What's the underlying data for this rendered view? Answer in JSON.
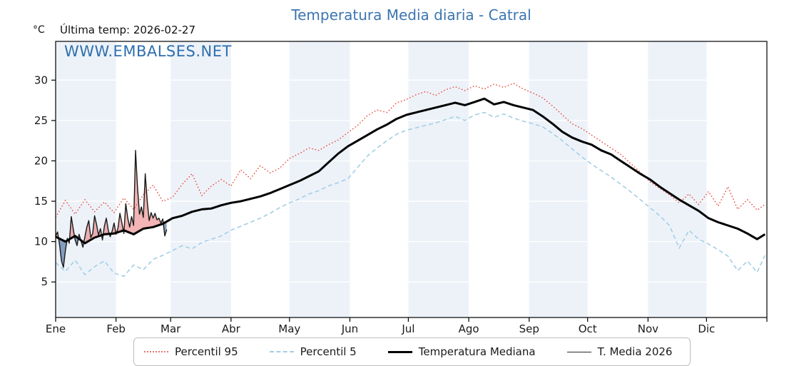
{
  "title": "Temperatura Media diaria - Catral",
  "header": {
    "unit_label": "°C",
    "last_temp_label": "Última temp: 2026-02-27"
  },
  "watermark": "WWW.EMBALSES.NET",
  "colors": {
    "title": "#3b75af",
    "watermark": "#2e6fad",
    "band": "#edf2f9",
    "grid": "#ffffff",
    "frame": "#000000",
    "p95": "#e74c3c",
    "p5": "#a3cfe5",
    "median": "#000000",
    "t2026": "#1a1a1a",
    "fill_above": "rgba(231,118,118,0.55)",
    "fill_below": "rgba(60,100,150,0.60)"
  },
  "legend": {
    "items": [
      {
        "label": "Percentil 95",
        "style": "dotted"
      },
      {
        "label": "Percentil 5",
        "style": "dashed"
      },
      {
        "label": "Temperatura Mediana",
        "style": "thick"
      },
      {
        "label": "T. Media 2026",
        "style": "thin"
      }
    ]
  },
  "chart_data": {
    "type": "line",
    "title": "Temperatura Media diaria - Catral",
    "xlabel": "",
    "ylabel": "°C",
    "grid": true,
    "legend_position": "bottom",
    "ylim": [
      0.6,
      34.8
    ],
    "y_ticks": [
      5,
      10,
      15,
      20,
      25,
      30
    ],
    "x_tick_labels": [
      "Ene",
      "Feb",
      "Mar",
      "Abr",
      "May",
      "Jun",
      "Jul",
      "Ago",
      "Sep",
      "Oct",
      "Nov",
      "Dic"
    ],
    "month_start_days": [
      0,
      31,
      59,
      90,
      120,
      151,
      181,
      212,
      243,
      273,
      304,
      334,
      365
    ],
    "days": [
      0,
      5,
      10,
      15,
      20,
      25,
      30,
      35,
      40,
      45,
      50,
      55,
      60,
      65,
      70,
      75,
      80,
      85,
      90,
      95,
      100,
      105,
      110,
      115,
      120,
      125,
      130,
      135,
      140,
      145,
      150,
      155,
      160,
      165,
      170,
      175,
      180,
      185,
      190,
      195,
      200,
      205,
      210,
      215,
      220,
      225,
      230,
      235,
      240,
      245,
      250,
      255,
      260,
      265,
      270,
      275,
      280,
      285,
      290,
      295,
      300,
      305,
      310,
      315,
      320,
      325,
      330,
      335,
      340,
      345,
      350,
      355,
      360,
      364
    ],
    "series": [
      {
        "name": "Percentil 95",
        "values": [
          13.0,
          15.1,
          13.4,
          15.2,
          13.7,
          14.9,
          13.6,
          15.4,
          14.0,
          15.8,
          17.0,
          15.0,
          15.5,
          17.1,
          18.4,
          15.7,
          16.9,
          17.7,
          16.9,
          18.9,
          17.8,
          19.4,
          18.5,
          19.1,
          20.3,
          20.9,
          21.6,
          21.3,
          22.0,
          22.6,
          23.5,
          24.4,
          25.6,
          26.3,
          26.0,
          27.2,
          27.6,
          28.2,
          28.6,
          28.1,
          28.8,
          29.2,
          28.7,
          29.3,
          28.9,
          29.5,
          29.1,
          29.6,
          28.9,
          28.4,
          27.8,
          26.8,
          25.7,
          24.6,
          24.0,
          23.2,
          22.4,
          21.6,
          20.8,
          19.7,
          18.6,
          17.4,
          16.6,
          15.8,
          14.8,
          15.9,
          14.6,
          16.2,
          14.4,
          16.8,
          14.0,
          15.2,
          13.9,
          14.6
        ]
      },
      {
        "name": "Percentil 5",
        "values": [
          7.4,
          6.3,
          7.7,
          5.9,
          6.9,
          7.6,
          6.1,
          5.7,
          7.1,
          6.5,
          7.8,
          8.3,
          8.9,
          9.5,
          9.1,
          9.9,
          10.3,
          10.7,
          11.4,
          11.9,
          12.4,
          12.9,
          13.5,
          14.2,
          14.8,
          15.3,
          15.9,
          16.3,
          16.9,
          17.3,
          17.8,
          19.2,
          20.6,
          21.6,
          22.5,
          23.3,
          23.8,
          24.1,
          24.4,
          24.7,
          25.1,
          25.5,
          25.0,
          25.7,
          26.0,
          25.4,
          25.8,
          25.3,
          24.9,
          24.6,
          24.2,
          23.4,
          22.5,
          21.5,
          20.5,
          19.6,
          18.8,
          18.0,
          17.1,
          16.2,
          15.2,
          14.2,
          13.2,
          12.0,
          9.2,
          11.4,
          10.3,
          9.7,
          9.0,
          8.2,
          6.4,
          7.6,
          6.2,
          8.3
        ]
      },
      {
        "name": "Temperatura Mediana",
        "values": [
          10.6,
          10.0,
          10.7,
          9.8,
          10.5,
          10.9,
          11.0,
          11.4,
          10.9,
          11.6,
          11.8,
          12.2,
          12.9,
          13.2,
          13.7,
          14.0,
          14.1,
          14.5,
          14.8,
          15.0,
          15.3,
          15.6,
          16.0,
          16.5,
          17.0,
          17.5,
          18.1,
          18.7,
          19.8,
          20.9,
          21.8,
          22.5,
          23.2,
          23.9,
          24.5,
          25.2,
          25.7,
          26.0,
          26.3,
          26.6,
          26.9,
          27.2,
          26.9,
          27.3,
          27.7,
          27.0,
          27.3,
          26.9,
          26.6,
          26.3,
          25.5,
          24.6,
          23.6,
          22.9,
          22.4,
          22.0,
          21.3,
          20.8,
          20.0,
          19.2,
          18.4,
          17.7,
          16.8,
          16.0,
          15.2,
          14.5,
          13.8,
          12.9,
          12.4,
          12.0,
          11.6,
          11.0,
          10.3,
          10.9
        ]
      },
      {
        "name": "T. Media 2026",
        "days": [
          0,
          1,
          2,
          3,
          4,
          5,
          6,
          7,
          8,
          9,
          10,
          11,
          12,
          13,
          14,
          15,
          16,
          17,
          18,
          19,
          20,
          21,
          22,
          23,
          24,
          25,
          26,
          27,
          28,
          29,
          30,
          31,
          32,
          33,
          34,
          35,
          36,
          37,
          38,
          39,
          40,
          41,
          42,
          43,
          44,
          45,
          46,
          47,
          48,
          49,
          50,
          51,
          52,
          53,
          54,
          55,
          56,
          57
        ],
        "values": [
          10.7,
          11.2,
          9.6,
          7.6,
          6.8,
          8.9,
          10.4,
          9.8,
          13.1,
          11.6,
          10.2,
          9.5,
          10.9,
          10.1,
          9.3,
          10.6,
          11.8,
          12.6,
          10.5,
          11.0,
          13.2,
          12.1,
          10.8,
          11.6,
          10.2,
          11.9,
          12.9,
          11.4,
          10.6,
          11.3,
          12.3,
          10.9,
          11.7,
          13.5,
          12.3,
          11.0,
          14.7,
          12.9,
          11.8,
          13.1,
          12.0,
          21.3,
          16.8,
          13.4,
          14.3,
          13.0,
          18.4,
          15.0,
          12.6,
          13.6,
          12.9,
          13.5,
          12.7,
          12.9,
          12.3,
          12.8,
          10.7,
          11.5
        ]
      }
    ]
  }
}
